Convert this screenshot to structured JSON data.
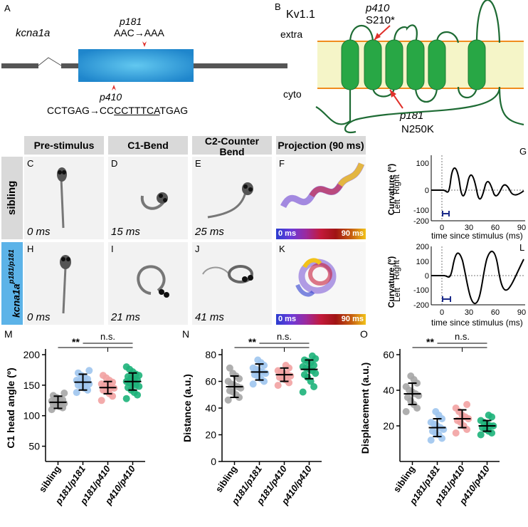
{
  "panelA": {
    "letter": "A",
    "gene": "kcna1a",
    "p181_label": "p181",
    "p181_change": "AAC→AAA",
    "p410_label": "p410",
    "p410_seq_a": "CCTGAG→CC",
    "p410_seq_b": "CCTTTCA",
    "p410_seq_c": "TGAG"
  },
  "panelB": {
    "letter": "B",
    "protein": "Kv1.1",
    "extra": "extra",
    "cyto": "cyto",
    "p410_label": "p410",
    "p410_change": "S210*",
    "p181_label": "p181",
    "p181_change": "N250K"
  },
  "imaging": {
    "headers": [
      "Pre-stimulus",
      "C1-Bend",
      "C2-Counter Bend",
      "Projection (90 ms)"
    ],
    "row1_label": "sibling",
    "row2_label": "kcna1a",
    "row2_sup": "p181/p181",
    "row1_letters": [
      "C",
      "D",
      "E",
      "F"
    ],
    "row2_letters": [
      "H",
      "I",
      "J",
      "K"
    ],
    "row1_times": [
      "0 ms",
      "15 ms",
      "25 ms"
    ],
    "row2_times": [
      "0 ms",
      "21 ms",
      "41 ms"
    ],
    "colorbar_start": "0 ms",
    "colorbar_end": "90 ms"
  },
  "curves": {
    "G_letter": "G",
    "L_letter": "L",
    "ylabel": "Curvature (º)",
    "right": "Right",
    "left": "Left",
    "xlabel": "time since stimulus (ms)",
    "G_yticks": [
      "100",
      "0",
      "-100",
      "-200"
    ],
    "L_yticks": [
      "200",
      "100",
      "0",
      "-100",
      "-200"
    ],
    "xticks": [
      "0",
      "30",
      "60",
      "90"
    ]
  },
  "chart_data": [
    {
      "type": "scatter",
      "letter": "M",
      "ylabel": "C1 head angle (º)",
      "categories": [
        "sibling",
        "p181/p181",
        "p181/p410",
        "p410/p410"
      ],
      "ylim": [
        25,
        200
      ],
      "yticks": [
        50,
        100,
        150,
        200
      ],
      "means": [
        122,
        155,
        146,
        156
      ],
      "sd": [
        10,
        13,
        10,
        14
      ],
      "colors": [
        "#a6a6a6",
        "#9ec5ee",
        "#f2a2a2",
        "#1db37a"
      ],
      "points": [
        [
          110,
          113,
          115,
          117,
          118,
          120,
          121,
          122,
          123,
          124,
          126,
          128,
          130,
          133,
          137
        ],
        [
          138,
          142,
          145,
          148,
          150,
          152,
          154,
          155,
          156,
          158,
          160,
          163,
          166,
          170,
          174
        ],
        [
          125,
          132,
          136,
          140,
          142,
          145,
          146,
          148,
          150,
          152,
          155,
          158,
          162,
          166
        ],
        [
          128,
          134,
          138,
          142,
          146,
          148,
          150,
          152,
          154,
          156,
          158,
          160,
          162,
          164,
          166,
          168,
          172,
          176,
          180
        ]
      ],
      "sig_star": "**",
      "sig_ns": "n.s."
    },
    {
      "type": "scatter",
      "letter": "N",
      "ylabel": "Distance (a.u.)",
      "categories": [
        "sibling",
        "p181/p181",
        "p181/p410",
        "p410/p410"
      ],
      "ylim": [
        0,
        80
      ],
      "yticks": [
        0,
        20,
        40,
        60,
        80
      ],
      "means": [
        56,
        67,
        65,
        69
      ],
      "sd": [
        8,
        6,
        5,
        7
      ],
      "colors": [
        "#a6a6a6",
        "#9ec5ee",
        "#f2a2a2",
        "#1db37a"
      ],
      "points": [
        [
          46,
          48,
          50,
          52,
          53,
          55,
          56,
          57,
          58,
          60,
          62,
          64,
          66,
          70
        ],
        [
          58,
          60,
          62,
          64,
          65,
          66,
          67,
          68,
          69,
          70,
          72,
          74,
          76
        ],
        [
          57,
          59,
          61,
          62,
          63,
          64,
          65,
          66,
          67,
          68,
          70,
          72
        ],
        [
          52,
          56,
          60,
          63,
          65,
          66,
          68,
          69,
          70,
          71,
          72,
          74,
          75,
          76,
          77,
          79
        ]
      ],
      "sig_star": "**",
      "sig_ns": "n.s."
    },
    {
      "type": "scatter",
      "letter": "O",
      "ylabel": "Displacement (a.u.)",
      "categories": [
        "sibling",
        "p181/p181",
        "p181/p410",
        "p410/p410"
      ],
      "ylim": [
        0,
        60
      ],
      "yticks": [
        20,
        40,
        60
      ],
      "means": [
        38,
        19,
        24,
        20
      ],
      "sd": [
        6,
        5,
        5,
        3
      ],
      "colors": [
        "#a6a6a6",
        "#9ec5ee",
        "#f2a2a2",
        "#1db37a"
      ],
      "points": [
        [
          28,
          30,
          32,
          34,
          36,
          37,
          38,
          39,
          40,
          42,
          44,
          46,
          48
        ],
        [
          12,
          13,
          15,
          16,
          17,
          18,
          19,
          20,
          21,
          22,
          24,
          26,
          28
        ],
        [
          16,
          18,
          20,
          22,
          23,
          24,
          25,
          26,
          28,
          30,
          32
        ],
        [
          15,
          16,
          17,
          18,
          19,
          20,
          20,
          21,
          22,
          23,
          25,
          26
        ]
      ],
      "sig_star": "**",
      "sig_ns": "n.s."
    }
  ]
}
